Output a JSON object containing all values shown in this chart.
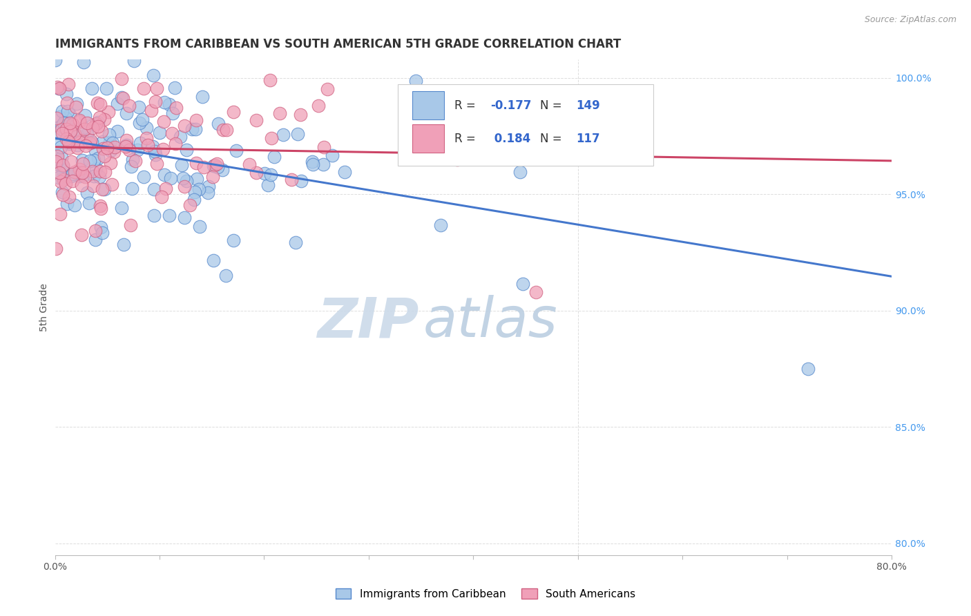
{
  "title": "IMMIGRANTS FROM CARIBBEAN VS SOUTH AMERICAN 5TH GRADE CORRELATION CHART",
  "source": "Source: ZipAtlas.com",
  "ylabel_left": "5th Grade",
  "x_min": 0.0,
  "x_max": 0.8,
  "y_min": 0.795,
  "y_max": 1.008,
  "right_yticks": [
    0.8,
    0.85,
    0.9,
    0.95,
    1.0
  ],
  "right_yticklabels": [
    "80.0%",
    "85.0%",
    "90.0%",
    "95.0%",
    "100.0%"
  ],
  "xticks": [
    0.0,
    0.1,
    0.2,
    0.3,
    0.4,
    0.5,
    0.6,
    0.7,
    0.8
  ],
  "xticklabels": [
    "0.0%",
    "",
    "",
    "",
    "",
    "",
    "",
    "",
    "80.0%"
  ],
  "blue_fill": "#a8c8e8",
  "blue_edge": "#5588cc",
  "pink_fill": "#f0a0b8",
  "pink_edge": "#d06080",
  "blue_line": "#4477cc",
  "pink_line": "#cc4466",
  "R_blue": -0.177,
  "N_blue": 149,
  "R_pink": 0.184,
  "N_pink": 117,
  "watermark_zip": "ZIP",
  "watermark_atlas": "atlas",
  "zip_color": "#c8d8e8",
  "atlas_color": "#b8cce0",
  "legend_entries": [
    "Immigrants from Caribbean",
    "South Americans"
  ],
  "background_color": "#ffffff",
  "grid_color": "#dddddd",
  "title_color": "#333333",
  "right_axis_color": "#4499ee",
  "legend_text_color": "#3366cc",
  "seed": 99
}
